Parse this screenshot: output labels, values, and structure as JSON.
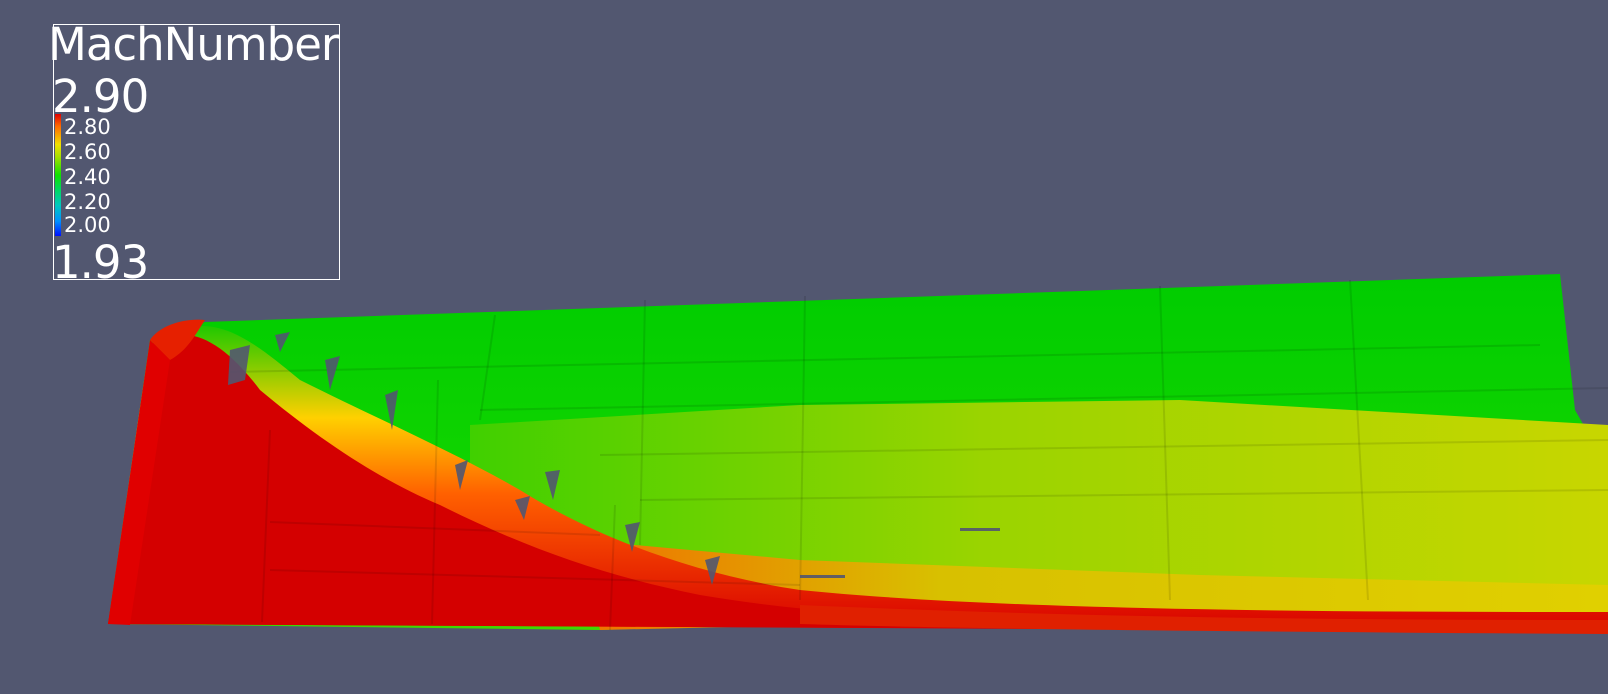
{
  "colorbar": {
    "title": "MachNumber",
    "max_label": "2.90",
    "min_label": "1.93",
    "ticks": [
      "2.80",
      "2.60",
      "2.40",
      "2.20",
      "2.00"
    ],
    "range": [
      1.93,
      2.9
    ],
    "colormap": [
      "#0010ff",
      "#00c8c0",
      "#10e000",
      "#f0e000",
      "#e00000"
    ]
  },
  "colors": {
    "background": "#525770",
    "legend_border": "#ffffff"
  }
}
